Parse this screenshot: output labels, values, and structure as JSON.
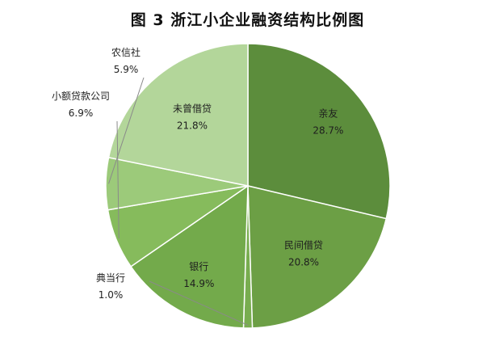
{
  "chart_data": {
    "type": "pie",
    "title": "图 3  浙江小企业融资结构比例图",
    "start_angle_deg": 0,
    "direction": "clockwise",
    "slices": [
      {
        "label": "亲友",
        "value": 28.7,
        "value_label": "28.7%",
        "color": "#5c8d3c"
      },
      {
        "label": "民间借贷",
        "value": 20.8,
        "value_label": "20.8%",
        "color": "#6c9f45"
      },
      {
        "label": "典当行",
        "value": 1.0,
        "value_label": "1.0%",
        "color": "#78ad4f"
      },
      {
        "label": "银行",
        "value": 14.9,
        "value_label": "14.9%",
        "color": "#73aa4b"
      },
      {
        "label": "小额贷款公司",
        "value": 6.9,
        "value_label": "6.9%",
        "color": "#86bb5c"
      },
      {
        "label": "农信社",
        "value": 5.9,
        "value_label": "5.9%",
        "color": "#9cca7a"
      },
      {
        "label": "未曾借贷",
        "value": 21.8,
        "value_label": "21.8%",
        "color": "#b3d69a"
      }
    ]
  }
}
